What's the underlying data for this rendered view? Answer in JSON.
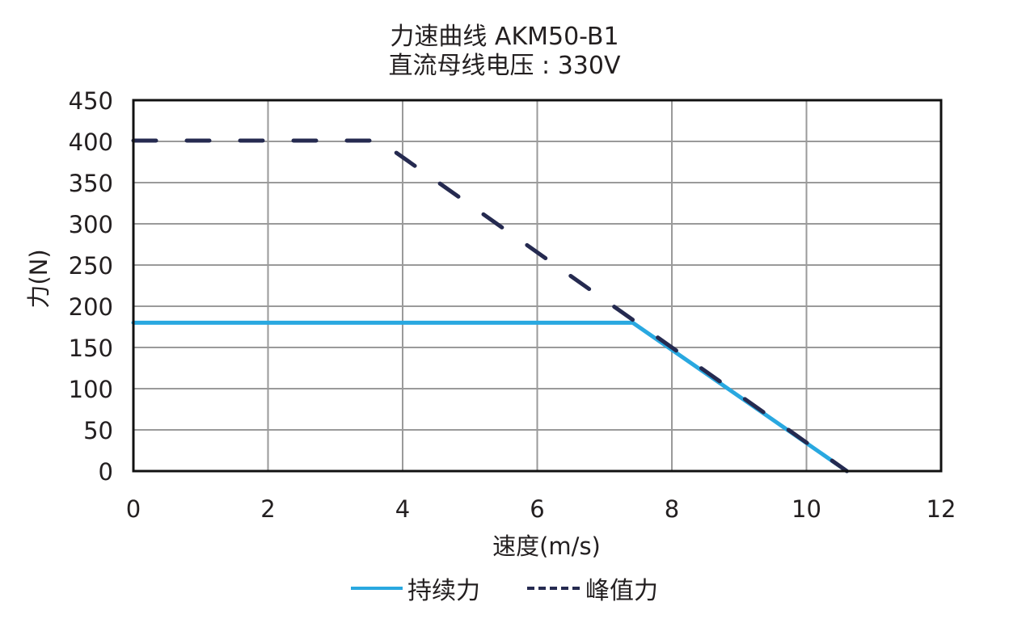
{
  "title": {
    "line1": "力速曲线 AKM50-B1",
    "line2": "直流母线电压 : 330V"
  },
  "axes": {
    "xlabel": "速度(m/s)",
    "ylabel": "力(N)",
    "xticks": [
      "0",
      "2",
      "4",
      "6",
      "8",
      "10",
      "12"
    ],
    "yticks": [
      "0",
      "50",
      "100",
      "150",
      "200",
      "250",
      "300",
      "350",
      "400",
      "450"
    ]
  },
  "legend": {
    "continuous_label": "持续力",
    "peak_label": "峰值力"
  },
  "colors": {
    "continuous": "#29a8e0",
    "peak": "#252a50",
    "grid": "#9a9a9a",
    "frame": "#111111"
  },
  "chart_data": {
    "type": "line",
    "title": "力速曲线 AKM50-B1 / 直流母线电压 : 330V",
    "xlabel": "速度(m/s)",
    "ylabel": "力(N)",
    "xlim": [
      0,
      12
    ],
    "ylim": [
      0,
      450
    ],
    "xticks": [
      0,
      2,
      4,
      6,
      8,
      10,
      12
    ],
    "yticks": [
      0,
      50,
      100,
      150,
      200,
      250,
      300,
      350,
      400,
      450
    ],
    "grid": true,
    "legend_position": "bottom",
    "series": [
      {
        "name": "持续力",
        "style": "solid",
        "color": "#29a8e0",
        "x": [
          0,
          7.42,
          10.6
        ],
        "y": [
          180,
          180,
          0
        ]
      },
      {
        "name": "峰值力",
        "style": "dashed",
        "color": "#252a50",
        "x": [
          0,
          3.65,
          10.6
        ],
        "y": [
          401,
          401,
          0
        ]
      }
    ]
  }
}
